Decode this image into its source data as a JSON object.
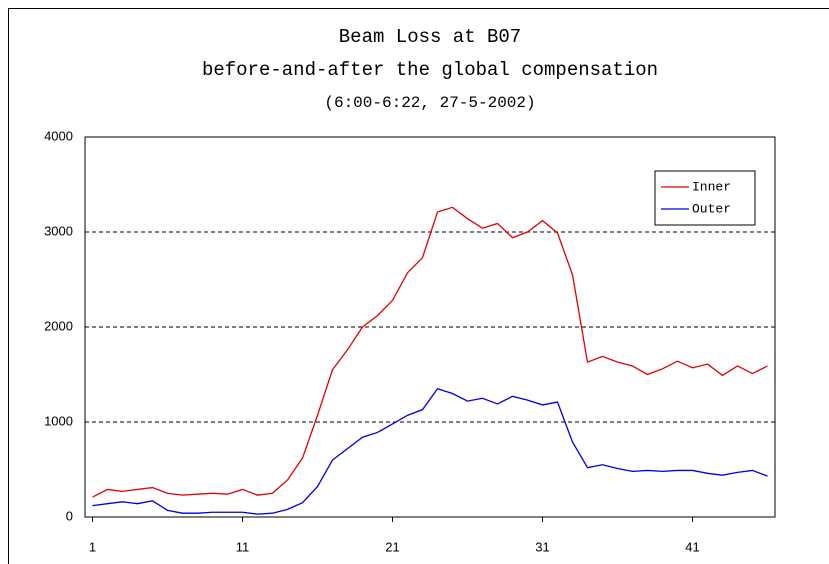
{
  "chart_data": {
    "type": "line",
    "title": "Beam Loss at B07",
    "subtitle": "before-and-after the global compensation",
    "annotation": "(6:00-6:22, 27-5-2002)",
    "x": [
      1,
      2,
      3,
      4,
      5,
      6,
      7,
      8,
      9,
      10,
      11,
      12,
      13,
      14,
      15,
      16,
      17,
      18,
      19,
      20,
      21,
      22,
      23,
      24,
      25,
      26,
      27,
      28,
      29,
      30,
      31,
      32,
      33,
      34,
      35,
      36,
      37,
      38,
      39,
      40,
      41,
      42,
      43,
      44,
      45,
      46
    ],
    "xlim": [
      0.5,
      46.5
    ],
    "xticks": [
      1,
      11,
      21,
      31,
      41
    ],
    "ylim": [
      0,
      4000
    ],
    "yticks": [
      0,
      1000,
      2000,
      3000,
      4000
    ],
    "grid": true,
    "legend": "upper right",
    "series": [
      {
        "name": "Inner",
        "color": "#e00000",
        "values": [
          210,
          290,
          270,
          290,
          310,
          250,
          230,
          240,
          250,
          240,
          290,
          230,
          250,
          390,
          620,
          1070,
          1550,
          1760,
          2000,
          2120,
          2280,
          2570,
          2730,
          3210,
          3260,
          3140,
          3040,
          3090,
          2940,
          3000,
          3120,
          2990,
          2550,
          1630,
          1690,
          1630,
          1590,
          1500,
          1560,
          1640,
          1570,
          1610,
          1490,
          1590,
          1510,
          1590
        ]
      },
      {
        "name": "Outer",
        "color": "#0000e0",
        "values": [
          120,
          140,
          160,
          140,
          170,
          70,
          40,
          40,
          50,
          50,
          50,
          30,
          40,
          80,
          150,
          320,
          600,
          720,
          840,
          890,
          980,
          1070,
          1130,
          1350,
          1300,
          1220,
          1250,
          1190,
          1270,
          1230,
          1180,
          1210,
          790,
          520,
          550,
          510,
          480,
          490,
          480,
          490,
          490,
          460,
          440,
          470,
          490,
          430
        ]
      }
    ]
  }
}
